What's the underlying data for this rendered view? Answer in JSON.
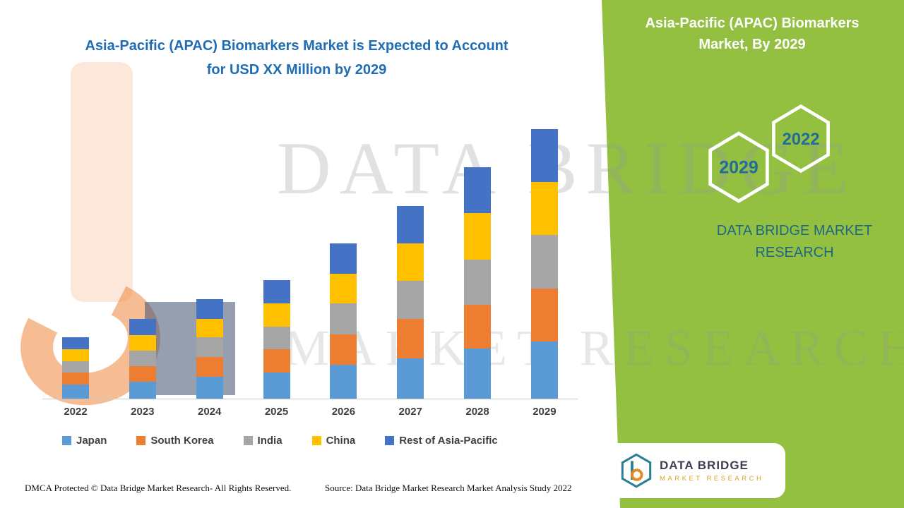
{
  "left_title": {
    "line1": "Asia-Pacific (APAC) Biomarkers Market is Expected to Account",
    "line2": "for USD XX Million by 2029"
  },
  "right_panel": {
    "title_line1": "Asia-Pacific (APAC) Biomarkers",
    "title_line2": "Market, By 2029",
    "hexagon_back_label": "2029",
    "hexagon_front_label": "2022",
    "brand_line1": "DATA BRIDGE MARKET",
    "brand_line2": "RESEARCH",
    "green_color": "#94c041"
  },
  "watermark": {
    "line1": "DATA BRIDGE",
    "line2": "MARKET RESEARCH"
  },
  "chart_data": {
    "type": "bar",
    "stacked": true,
    "title": "Asia-Pacific (APAC) Biomarkers Market is Expected to Account for USD XX Million by 2029",
    "categories": [
      "2022",
      "2023",
      "2024",
      "2025",
      "2026",
      "2027",
      "2028",
      "2029"
    ],
    "series": [
      {
        "name": "Japan",
        "color": "#5B9BD5",
        "values": [
          20,
          24,
          31,
          37,
          48,
          57,
          71,
          81
        ]
      },
      {
        "name": "South Korea",
        "color": "#ED7D31",
        "values": [
          17,
          22,
          28,
          33,
          43,
          56,
          62,
          75
        ]
      },
      {
        "name": "India",
        "color": "#A5A5A5",
        "values": [
          16,
          22,
          28,
          32,
          44,
          54,
          64,
          76
        ]
      },
      {
        "name": "China",
        "color": "#FFC000",
        "values": [
          17,
          22,
          26,
          33,
          42,
          53,
          66,
          75
        ]
      },
      {
        "name": "Rest of Asia-Pacific",
        "color": "#4472C4",
        "values": [
          17,
          23,
          28,
          33,
          43,
          53,
          65,
          75
        ]
      }
    ],
    "totals": [
      87,
      113,
      141,
      168,
      220,
      273,
      328,
      382
    ],
    "xlabel": "",
    "ylabel": "",
    "value_note": "relative units estimated from bar heights; actual values shown as USD XX Million (undisclosed)",
    "y_axis_visible": false,
    "grid": false,
    "legend_position": "bottom"
  },
  "footer": {
    "dmca": "DMCA Protected © Data Bridge Market Research- All Rights Reserved.",
    "source": "Source: Data Bridge Market Research Market Analysis Study 2022"
  },
  "logo": {
    "brand": "DATA BRIDGE",
    "sub": "MARKET RESEARCH"
  }
}
